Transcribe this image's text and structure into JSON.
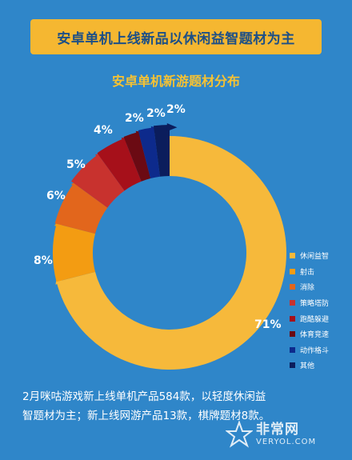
{
  "banner": {
    "title": "安卓单机上线新品以休闲益智题材为主"
  },
  "chart_data": {
    "type": "pie",
    "title": "安卓单机新游题材分布",
    "categories": [
      "休闲益智",
      "射击",
      "消除",
      "策略塔防",
      "跑酷躲避",
      "体育竞速",
      "动作格斗",
      "其他"
    ],
    "values": [
      71,
      8,
      6,
      5,
      4,
      2,
      2,
      2
    ],
    "value_labels": [
      "71%",
      "8%",
      "6%",
      "5%",
      "4%",
      "2%",
      "2%",
      "2%"
    ],
    "colors": [
      "#f6b93b",
      "#f39c12",
      "#e2661c",
      "#c8322e",
      "#a6101a",
      "#6b0a13",
      "#0d2a8c",
      "#0b1d5c"
    ],
    "legend_position": "right"
  },
  "footnote": {
    "line1": "2月咪咕游戏新上线单机产品584款，以轻度休闲益",
    "line2": "智题材为主；新上线网游产品13款，棋牌题材8款。"
  },
  "watermark": {
    "cn": "非常网",
    "en": "VERYOL.COM"
  }
}
